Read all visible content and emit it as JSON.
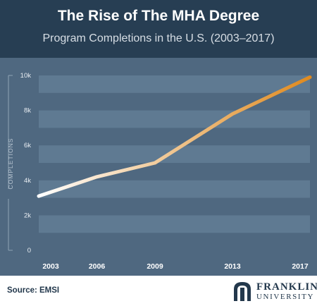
{
  "header": {
    "title": "The Rise of The MHA Degree",
    "subtitle": "Program Completions in the U.S. (2003–2017)"
  },
  "footer": {
    "source": "Source: EMSI",
    "logo_line1": "FRANKLIN",
    "logo_line2": "UNIVERSITY"
  },
  "colors": {
    "header_bg": "#273e53",
    "plot_bg": "#4f6880",
    "band": "#5f7a92",
    "line_start": "#ffffff",
    "line_end": "#e08a1e"
  },
  "chart_data": {
    "type": "line",
    "title": "The Rise of The MHA Degree",
    "subtitle": "Program Completions in the U.S. (2003–2017)",
    "xlabel": "",
    "ylabel": "COMPLETIONS",
    "x": [
      2003,
      2006,
      2009,
      2013,
      2017
    ],
    "x_tick_labels": [
      "2003",
      "2006",
      "2009",
      "2013",
      "2017"
    ],
    "y_tick_values": [
      0,
      2000,
      4000,
      6000,
      8000,
      10000
    ],
    "y_tick_labels": [
      "0",
      "2k",
      "4k",
      "6k",
      "8k",
      "10k"
    ],
    "ylim": [
      0,
      10000
    ],
    "series": [
      {
        "values": [
          3100,
          4200,
          5000,
          7800,
          9900
        ]
      }
    ],
    "grid": "alternating horizontal bands",
    "legend": "none"
  }
}
